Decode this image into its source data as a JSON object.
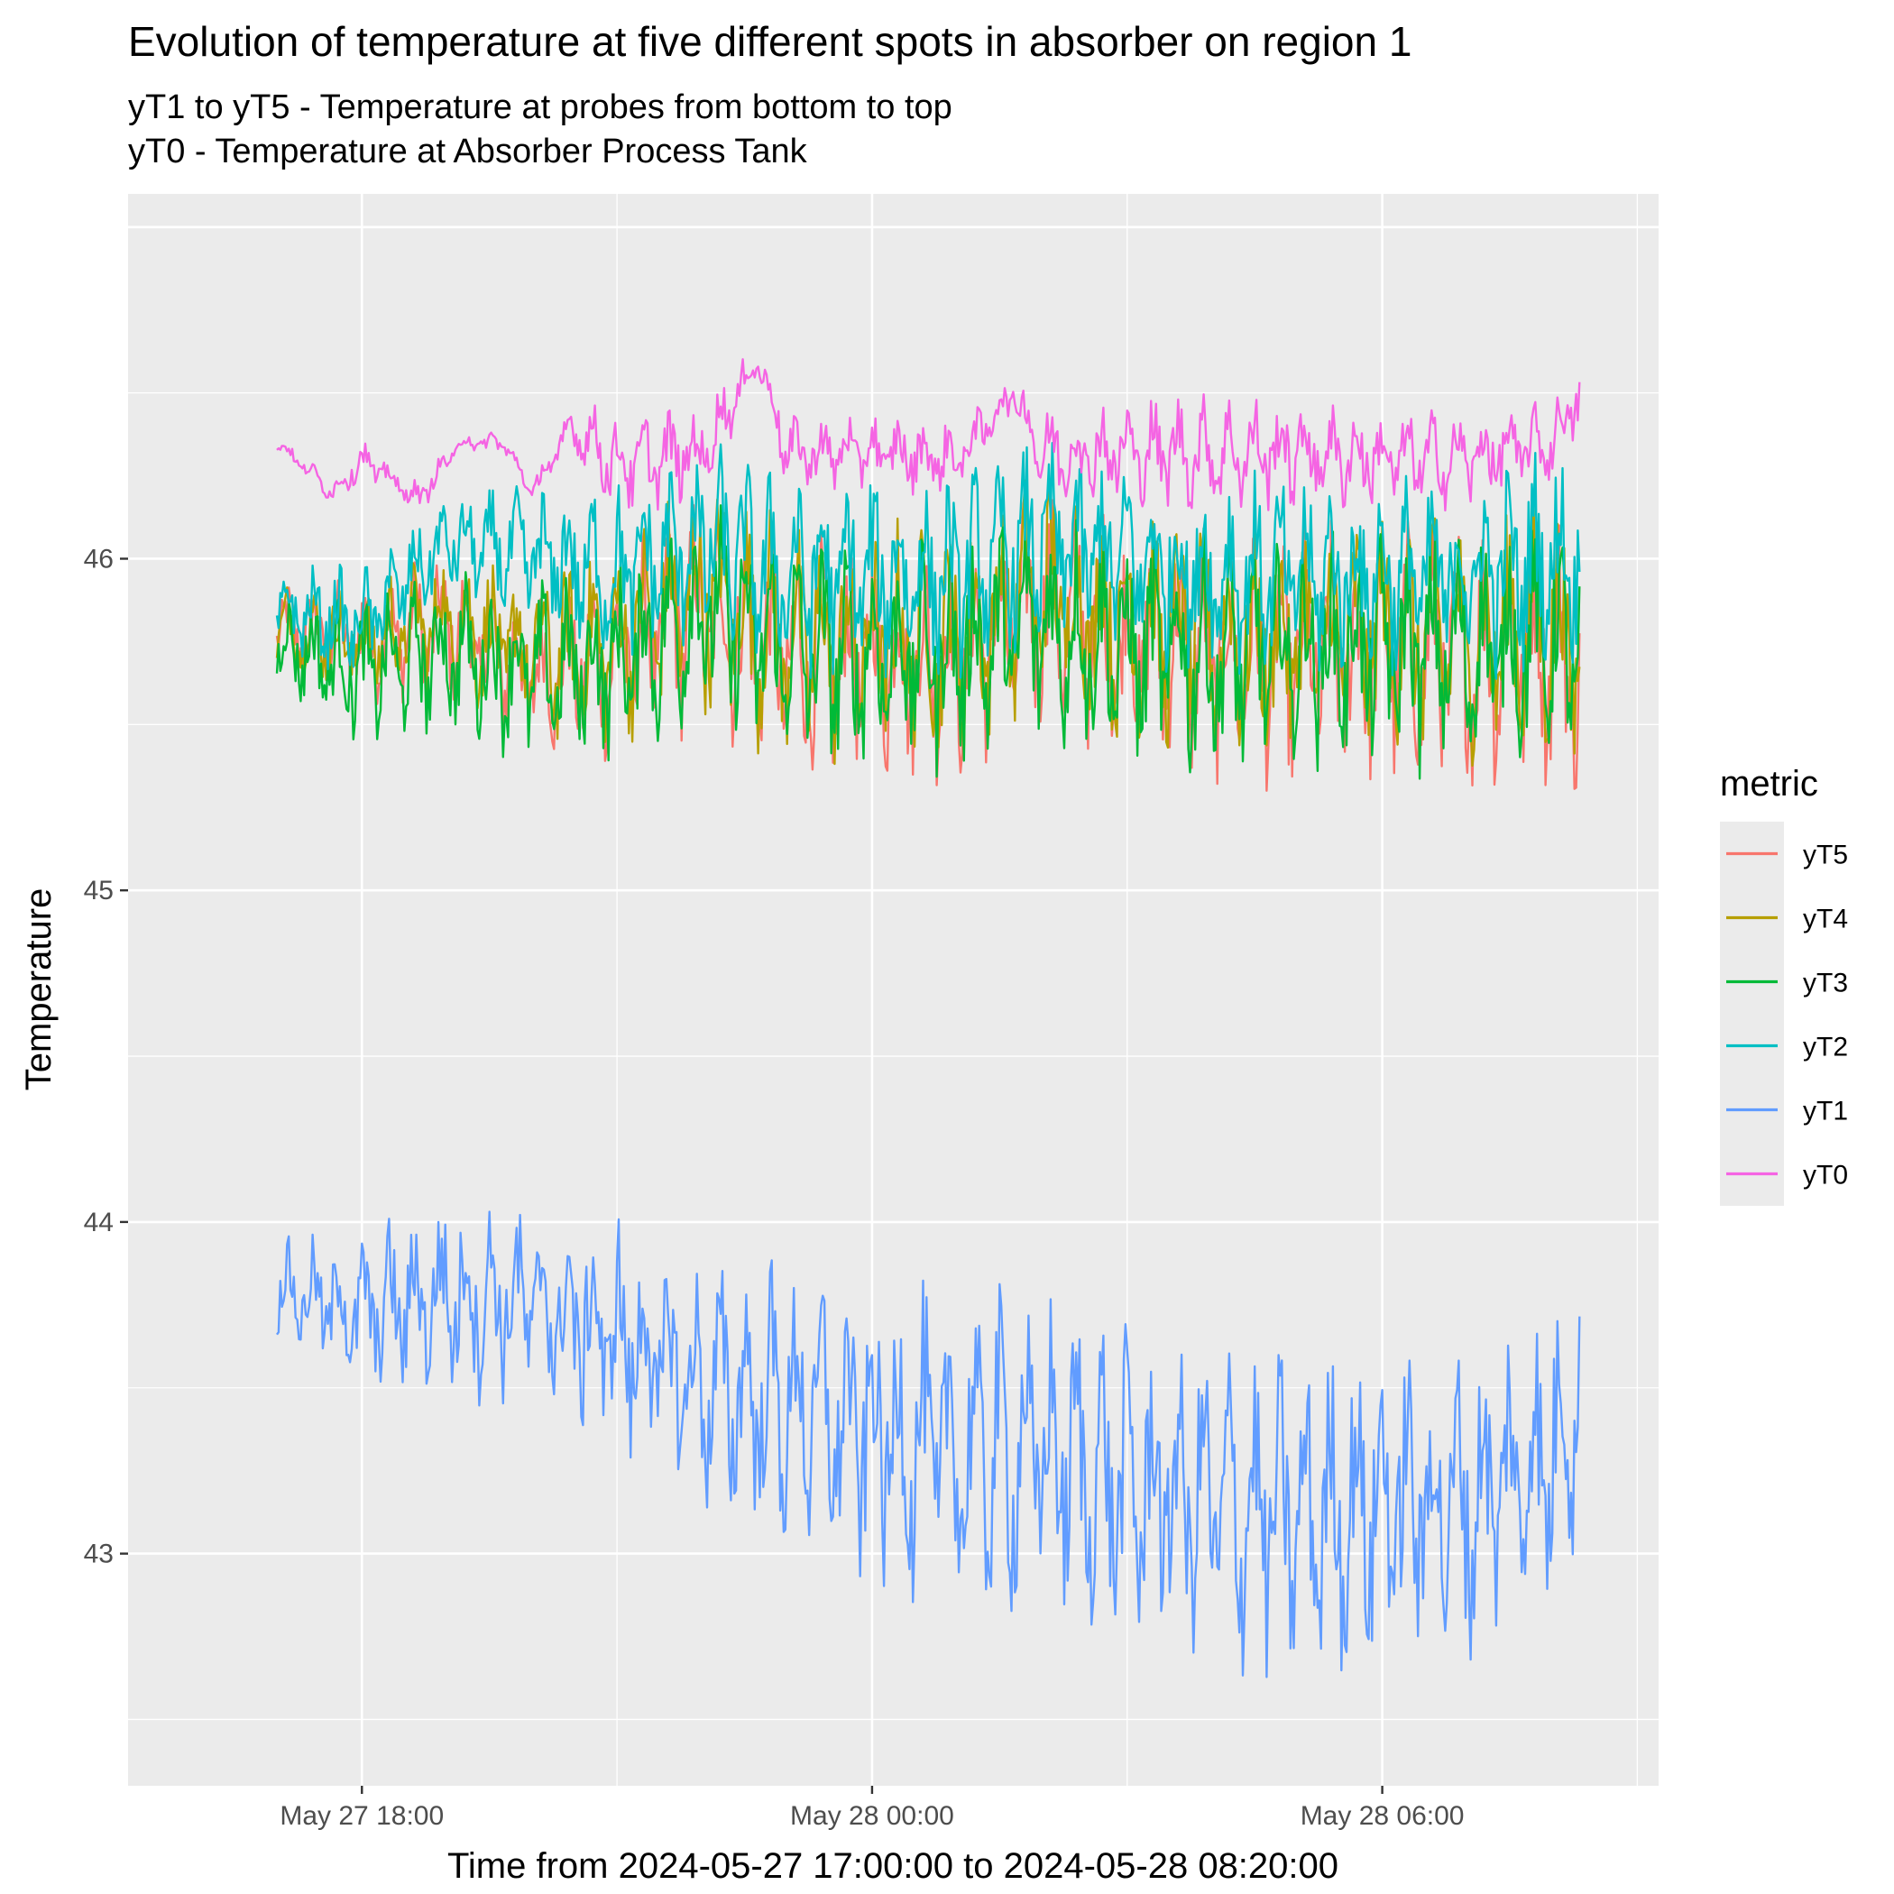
{
  "chart_data": {
    "type": "line",
    "title": "Evolution of temperature at five different spots in absorber on region 1",
    "subtitle_lines": [
      "yT1 to yT5 - Temperature at probes from bottom to top",
      "yT0 - Temperature at Absorber Process Tank"
    ],
    "xlabel": "Time from 2024-05-27 17:00:00 to 2024-05-28 08:20:00",
    "ylabel": "Temperature",
    "x_range": [
      "2024-05-27 17:00:00",
      "2024-05-28 08:20:00"
    ],
    "xlim": [
      "2024-05-27 15:15:00",
      "2024-05-28 09:15:00"
    ],
    "ylim": [
      42.3,
      47.1
    ],
    "x_ticks": [
      {
        "label": "May 27 18:00",
        "time": "2024-05-27 18:00:00"
      },
      {
        "label": "May 28 00:00",
        "time": "2024-05-28 00:00:00"
      },
      {
        "label": "May 28 06:00",
        "time": "2024-05-28 06:00:00"
      }
    ],
    "y_ticks": [
      43,
      44,
      45,
      46
    ],
    "grid": true,
    "legend": {
      "title": "metric",
      "placement": "right"
    },
    "series": [
      {
        "name": "yT5",
        "color": "#F8766D",
        "x": [
          "2024-05-27 17:00",
          "2024-05-27 18:00",
          "2024-05-27 19:00",
          "2024-05-27 20:00",
          "2024-05-27 21:00",
          "2024-05-27 22:00",
          "2024-05-27 23:00",
          "2024-05-28 00:00",
          "2024-05-28 01:00",
          "2024-05-28 02:00",
          "2024-05-28 03:00",
          "2024-05-28 04:00",
          "2024-05-28 05:00",
          "2024-05-28 06:00",
          "2024-05-28 07:00",
          "2024-05-28 08:00",
          "2024-05-28 08:20"
        ],
        "mean": [
          45.8,
          45.75,
          45.8,
          45.65,
          45.7,
          45.85,
          45.7,
          45.7,
          45.7,
          45.85,
          45.75,
          45.7,
          45.7,
          45.72,
          45.7,
          45.75,
          45.6
        ],
        "amplitude": [
          0.1,
          0.15,
          0.18,
          0.2,
          0.25,
          0.3,
          0.3,
          0.3,
          0.3,
          0.3,
          0.3,
          0.3,
          0.32,
          0.32,
          0.32,
          0.35,
          0.3
        ]
      },
      {
        "name": "yT4",
        "color": "#B79F00",
        "x": [
          "2024-05-27 17:00",
          "2024-05-27 18:00",
          "2024-05-27 19:00",
          "2024-05-27 20:00",
          "2024-05-27 21:00",
          "2024-05-27 22:00",
          "2024-05-27 23:00",
          "2024-05-28 00:00",
          "2024-05-28 01:00",
          "2024-05-28 02:00",
          "2024-05-28 03:00",
          "2024-05-28 04:00",
          "2024-05-28 05:00",
          "2024-05-28 06:00",
          "2024-05-28 07:00",
          "2024-05-28 08:00",
          "2024-05-28 08:20"
        ],
        "mean": [
          45.8,
          45.75,
          45.82,
          45.7,
          45.75,
          45.9,
          45.75,
          45.75,
          45.75,
          45.9,
          45.8,
          45.75,
          45.75,
          45.78,
          45.75,
          45.8,
          45.7
        ],
        "amplitude": [
          0.1,
          0.15,
          0.18,
          0.22,
          0.25,
          0.3,
          0.3,
          0.3,
          0.3,
          0.3,
          0.3,
          0.3,
          0.3,
          0.3,
          0.3,
          0.32,
          0.3
        ]
      },
      {
        "name": "yT3",
        "color": "#00BA38",
        "x": [
          "2024-05-27 17:00",
          "2024-05-27 18:00",
          "2024-05-27 19:00",
          "2024-05-27 20:00",
          "2024-05-27 21:00",
          "2024-05-27 22:00",
          "2024-05-27 23:00",
          "2024-05-28 00:00",
          "2024-05-28 01:00",
          "2024-05-28 02:00",
          "2024-05-28 03:00",
          "2024-05-28 04:00",
          "2024-05-28 05:00",
          "2024-05-28 06:00",
          "2024-05-28 07:00",
          "2024-05-28 08:00",
          "2024-05-28 08:20"
        ],
        "mean": [
          45.75,
          45.65,
          45.72,
          45.65,
          45.68,
          45.85,
          45.72,
          45.7,
          45.72,
          45.8,
          45.72,
          45.7,
          45.72,
          45.72,
          45.72,
          45.75,
          45.7
        ],
        "amplitude": [
          0.12,
          0.18,
          0.2,
          0.22,
          0.25,
          0.28,
          0.28,
          0.28,
          0.3,
          0.3,
          0.3,
          0.3,
          0.3,
          0.3,
          0.3,
          0.3,
          0.3
        ]
      },
      {
        "name": "yT2",
        "color": "#00BFC4",
        "x": [
          "2024-05-27 17:00",
          "2024-05-27 18:00",
          "2024-05-27 19:00",
          "2024-05-27 20:00",
          "2024-05-27 21:00",
          "2024-05-27 22:00",
          "2024-05-27 23:00",
          "2024-05-28 00:00",
          "2024-05-28 01:00",
          "2024-05-28 02:00",
          "2024-05-28 03:00",
          "2024-05-28 04:00",
          "2024-05-28 05:00",
          "2024-05-28 06:00",
          "2024-05-28 07:00",
          "2024-05-28 08:00",
          "2024-05-28 08:20"
        ],
        "mean": [
          45.85,
          45.8,
          46.05,
          46.0,
          45.95,
          46.05,
          45.95,
          45.95,
          45.95,
          46.05,
          46.0,
          45.95,
          45.95,
          45.95,
          45.95,
          46.0,
          46.0
        ],
        "amplitude": [
          0.1,
          0.15,
          0.12,
          0.18,
          0.22,
          0.25,
          0.25,
          0.25,
          0.25,
          0.25,
          0.25,
          0.25,
          0.25,
          0.25,
          0.25,
          0.28,
          0.25
        ]
      },
      {
        "name": "yT1",
        "color": "#619CFF",
        "x": [
          "2024-05-27 17:00",
          "2024-05-27 18:00",
          "2024-05-27 19:00",
          "2024-05-27 20:00",
          "2024-05-27 21:00",
          "2024-05-27 22:00",
          "2024-05-27 23:00",
          "2024-05-28 00:00",
          "2024-05-28 01:00",
          "2024-05-28 02:00",
          "2024-05-28 03:00",
          "2024-05-28 04:00",
          "2024-05-28 05:00",
          "2024-05-28 06:00",
          "2024-05-28 07:00",
          "2024-05-28 08:00",
          "2024-05-28 08:20"
        ],
        "mean": [
          43.8,
          43.72,
          43.78,
          43.75,
          43.65,
          43.5,
          43.45,
          43.35,
          43.3,
          43.3,
          43.2,
          43.15,
          43.1,
          43.15,
          43.15,
          43.3,
          43.5
        ],
        "amplitude": [
          0.12,
          0.2,
          0.25,
          0.25,
          0.3,
          0.3,
          0.35,
          0.38,
          0.4,
          0.4,
          0.4,
          0.4,
          0.4,
          0.4,
          0.4,
          0.4,
          0.35
        ]
      },
      {
        "name": "yT0",
        "color": "#F564E3",
        "x": [
          "2024-05-27 17:00",
          "2024-05-27 17:40",
          "2024-05-27 18:00",
          "2024-05-27 18:40",
          "2024-05-27 19:10",
          "2024-05-27 19:40",
          "2024-05-27 20:00",
          "2024-05-27 20:30",
          "2024-05-27 21:00",
          "2024-05-27 22:00",
          "2024-05-27 22:40",
          "2024-05-27 23:00",
          "2024-05-28 00:00",
          "2024-05-28 01:00",
          "2024-05-28 01:40",
          "2024-05-28 02:00",
          "2024-05-28 03:00",
          "2024-05-28 04:00",
          "2024-05-28 05:00",
          "2024-05-28 06:00",
          "2024-05-28 07:00",
          "2024-05-28 08:00",
          "2024-05-28 08:20"
        ],
        "mean": [
          46.35,
          46.2,
          46.3,
          46.18,
          46.35,
          46.35,
          46.2,
          46.4,
          46.28,
          46.32,
          46.6,
          46.32,
          46.32,
          46.3,
          46.5,
          46.32,
          46.32,
          46.32,
          46.32,
          46.3,
          46.3,
          46.35,
          46.5
        ],
        "amplitude": [
          0.02,
          0.03,
          0.05,
          0.04,
          0.03,
          0.03,
          0.03,
          0.08,
          0.12,
          0.12,
          0.05,
          0.1,
          0.1,
          0.1,
          0.05,
          0.12,
          0.14,
          0.14,
          0.14,
          0.12,
          0.12,
          0.1,
          0.1
        ]
      }
    ]
  }
}
